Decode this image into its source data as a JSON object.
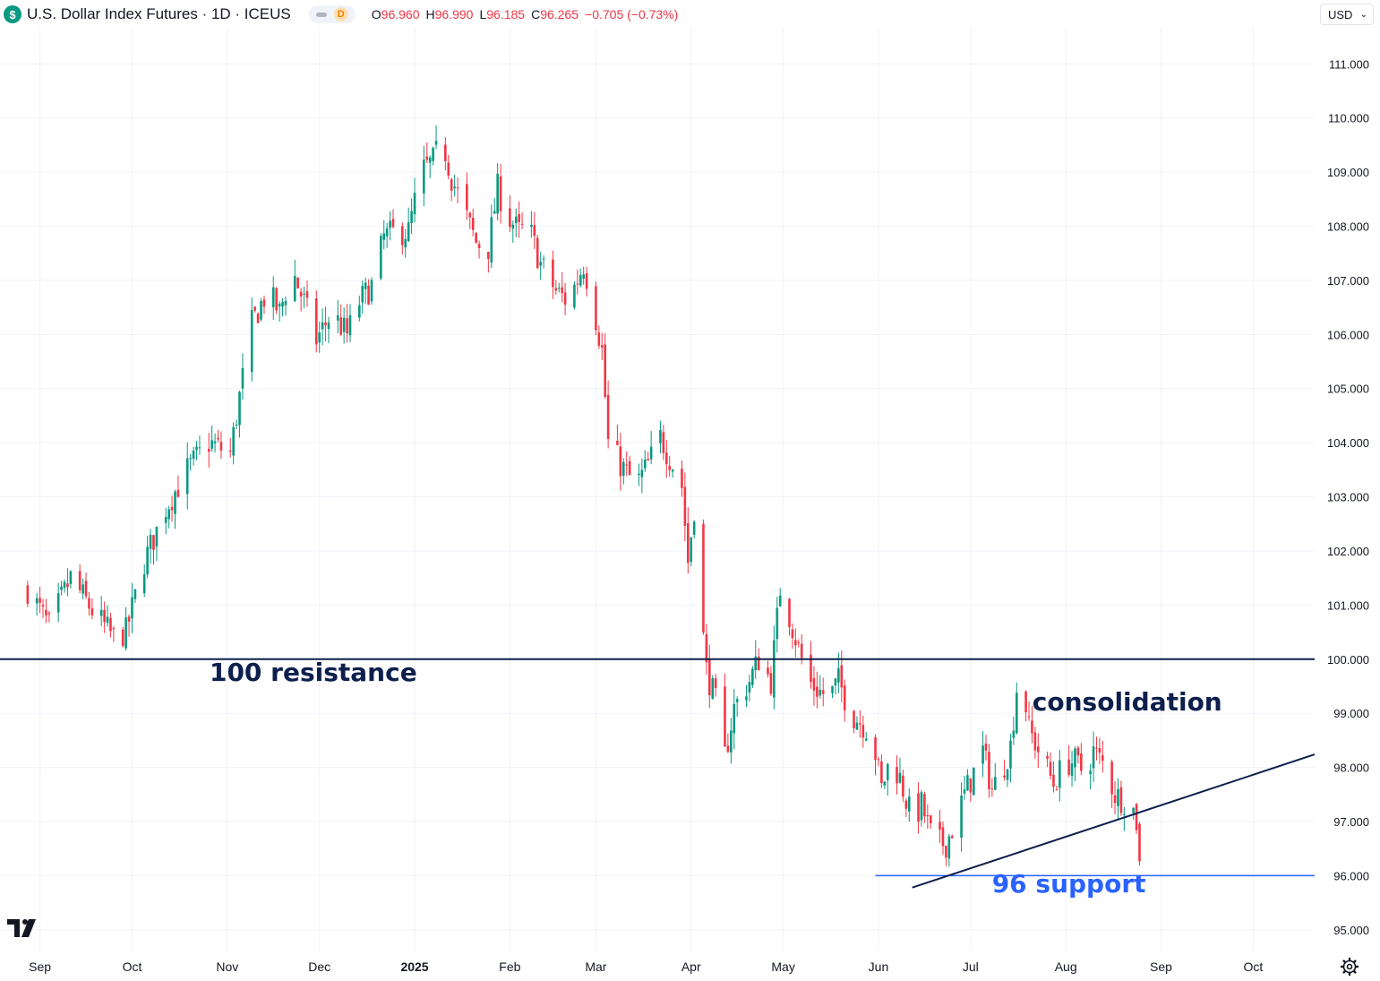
{
  "header": {
    "currency_icon": "dollar-sign-icon",
    "symbol_label": "U.S. Dollar Index Futures · 1D · ICEUS",
    "interval_badge": "D",
    "ohlc": {
      "o_label": "O",
      "o_value": "96.960",
      "h_label": "H",
      "h_value": "96.990",
      "l_label": "L",
      "l_value": "96.185",
      "c_label": "C",
      "c_value": "96.265",
      "change": "−0.705 (−0.73%)"
    }
  },
  "currency_select": {
    "value": "USD"
  },
  "colors": {
    "up": "#089981",
    "down": "#f23645",
    "grid": "#f0f3fa",
    "navy": "#0d1f4c",
    "support": "#2962ff",
    "axis_text": "#131722"
  },
  "icons": {
    "logo": "tradingview-logo-icon",
    "settings": "gear-icon"
  },
  "chart_data": {
    "type": "candlestick",
    "title": "U.S. Dollar Index Futures · 1D · ICEUS",
    "ylim": [
      94.6,
      111.65
    ],
    "y_ticks": [
      "95.000",
      "96.000",
      "97.000",
      "98.000",
      "99.000",
      "100.000",
      "101.000",
      "102.000",
      "103.000",
      "104.000",
      "105.000",
      "106.000",
      "107.000",
      "108.000",
      "109.000",
      "110.000",
      "111.000"
    ],
    "x_ticks": [
      {
        "label": "Sep",
        "day": 4,
        "bold": false
      },
      {
        "label": "Oct",
        "day": 34,
        "bold": false
      },
      {
        "label": "Nov",
        "day": 65,
        "bold": false
      },
      {
        "label": "Dec",
        "day": 95,
        "bold": false
      },
      {
        "label": "2025",
        "day": 126,
        "bold": true
      },
      {
        "label": "Feb",
        "day": 157,
        "bold": false
      },
      {
        "label": "Mar",
        "day": 185,
        "bold": false
      },
      {
        "label": "Apr",
        "day": 216,
        "bold": false
      },
      {
        "label": "May",
        "day": 246,
        "bold": false
      },
      {
        "label": "Jun",
        "day": 277,
        "bold": false
      },
      {
        "label": "Jul",
        "day": 307,
        "bold": false
      },
      {
        "label": "Aug",
        "day": 338,
        "bold": false
      },
      {
        "label": "Sep",
        "day": 369,
        "bold": false
      },
      {
        "label": "Oct",
        "day": 399,
        "bold": false
      }
    ],
    "xlim_days": [
      -9,
      419
    ],
    "start_date": "2024-08-23",
    "candle_close_path": [
      [
        0,
        101.3
      ],
      [
        7,
        100.6
      ],
      [
        14,
        101.5
      ],
      [
        21,
        100.9
      ],
      [
        28,
        100.4
      ],
      [
        32,
        100.5
      ],
      [
        38,
        101.8
      ],
      [
        45,
        102.8
      ],
      [
        52,
        103.5
      ],
      [
        59,
        104.0
      ],
      [
        66,
        103.8
      ],
      [
        70,
        105.2
      ],
      [
        73,
        106.2
      ],
      [
        78,
        106.8
      ],
      [
        82,
        106.4
      ],
      [
        86,
        107.2
      ],
      [
        90,
        106.6
      ],
      [
        94,
        105.9
      ],
      [
        99,
        106.4
      ],
      [
        104,
        106.0
      ],
      [
        108,
        106.6
      ],
      [
        112,
        106.9
      ],
      [
        116,
        107.8
      ],
      [
        120,
        107.9
      ],
      [
        124,
        107.9
      ],
      [
        128,
        109.0
      ],
      [
        132,
        109.2
      ],
      [
        135,
        109.6
      ],
      [
        138,
        108.9
      ],
      [
        142,
        108.3
      ],
      [
        146,
        107.7
      ],
      [
        150,
        107.6
      ],
      [
        153,
        108.7
      ],
      [
        156,
        108.2
      ],
      [
        160,
        107.9
      ],
      [
        163,
        108.0
      ],
      [
        167,
        107.3
      ],
      [
        172,
        106.8
      ],
      [
        176,
        106.6
      ],
      [
        181,
        107.3
      ],
      [
        184,
        106.6
      ],
      [
        187,
        105.7
      ],
      [
        189,
        104.0
      ],
      [
        193,
        103.6
      ],
      [
        198,
        103.2
      ],
      [
        202,
        103.6
      ],
      [
        206,
        104.1
      ],
      [
        210,
        103.6
      ],
      [
        213,
        103.2
      ],
      [
        215,
        101.8
      ],
      [
        217,
        102.8
      ],
      [
        219,
        101.0
      ],
      [
        221,
        99.8
      ],
      [
        224,
        99.2
      ],
      [
        227,
        98.2
      ],
      [
        230,
        99.1
      ],
      [
        235,
        99.6
      ],
      [
        238,
        100.0
      ],
      [
        242,
        99.6
      ],
      [
        245,
        101.3
      ],
      [
        248,
        100.8
      ],
      [
        251,
        100.2
      ],
      [
        254,
        99.6
      ],
      [
        258,
        99.4
      ],
      [
        261,
        99.3
      ],
      [
        264,
        99.6
      ],
      [
        268,
        99.0
      ],
      [
        272,
        98.8
      ],
      [
        275,
        98.6
      ],
      [
        278,
        97.6
      ],
      [
        281,
        98.2
      ],
      [
        284,
        97.8
      ],
      [
        288,
        97.0
      ],
      [
        291,
        97.3
      ],
      [
        295,
        96.6
      ],
      [
        299,
        96.6
      ],
      [
        302,
        97.0
      ],
      [
        305,
        97.5
      ],
      [
        308,
        97.9
      ],
      [
        311,
        98.3
      ],
      [
        314,
        97.6
      ],
      [
        317,
        97.9
      ],
      [
        320,
        98.4
      ],
      [
        323,
        100.0
      ],
      [
        326,
        98.7
      ],
      [
        330,
        98.2
      ],
      [
        334,
        97.7
      ],
      [
        338,
        98.1
      ],
      [
        341,
        98.1
      ],
      [
        344,
        97.9
      ],
      [
        347,
        98.3
      ],
      [
        351,
        98.0
      ],
      [
        354,
        97.5
      ],
      [
        357,
        97.4
      ],
      [
        359,
        97.4
      ],
      [
        361,
        97.0
      ],
      [
        362,
        96.3
      ]
    ],
    "horizontal_lines": [
      {
        "name": "resistance",
        "value": 100.0,
        "label": "100 resistance",
        "color": "#0d1f4c",
        "from_day": -9
      },
      {
        "name": "support",
        "value": 96.0,
        "label": "96 support",
        "color": "#2962ff",
        "from_day": 276
      }
    ],
    "trendline": {
      "start": {
        "day": 288,
        "value": 95.78
      },
      "end": {
        "day": 419,
        "value": 98.24
      },
      "color": "#0d1f4c"
    },
    "annotations": [
      {
        "name": "resistance-label",
        "text": "100 resistance",
        "day": 93,
        "value": 99.6,
        "color": "#0d1f4c"
      },
      {
        "name": "consolidation-label",
        "text": "consolidation",
        "day": 358,
        "value": 99.05,
        "color": "#0d1f4c"
      },
      {
        "name": "support-label",
        "text": "96 support",
        "day": 339,
        "value": 95.69,
        "color": "#2962ff"
      }
    ]
  }
}
